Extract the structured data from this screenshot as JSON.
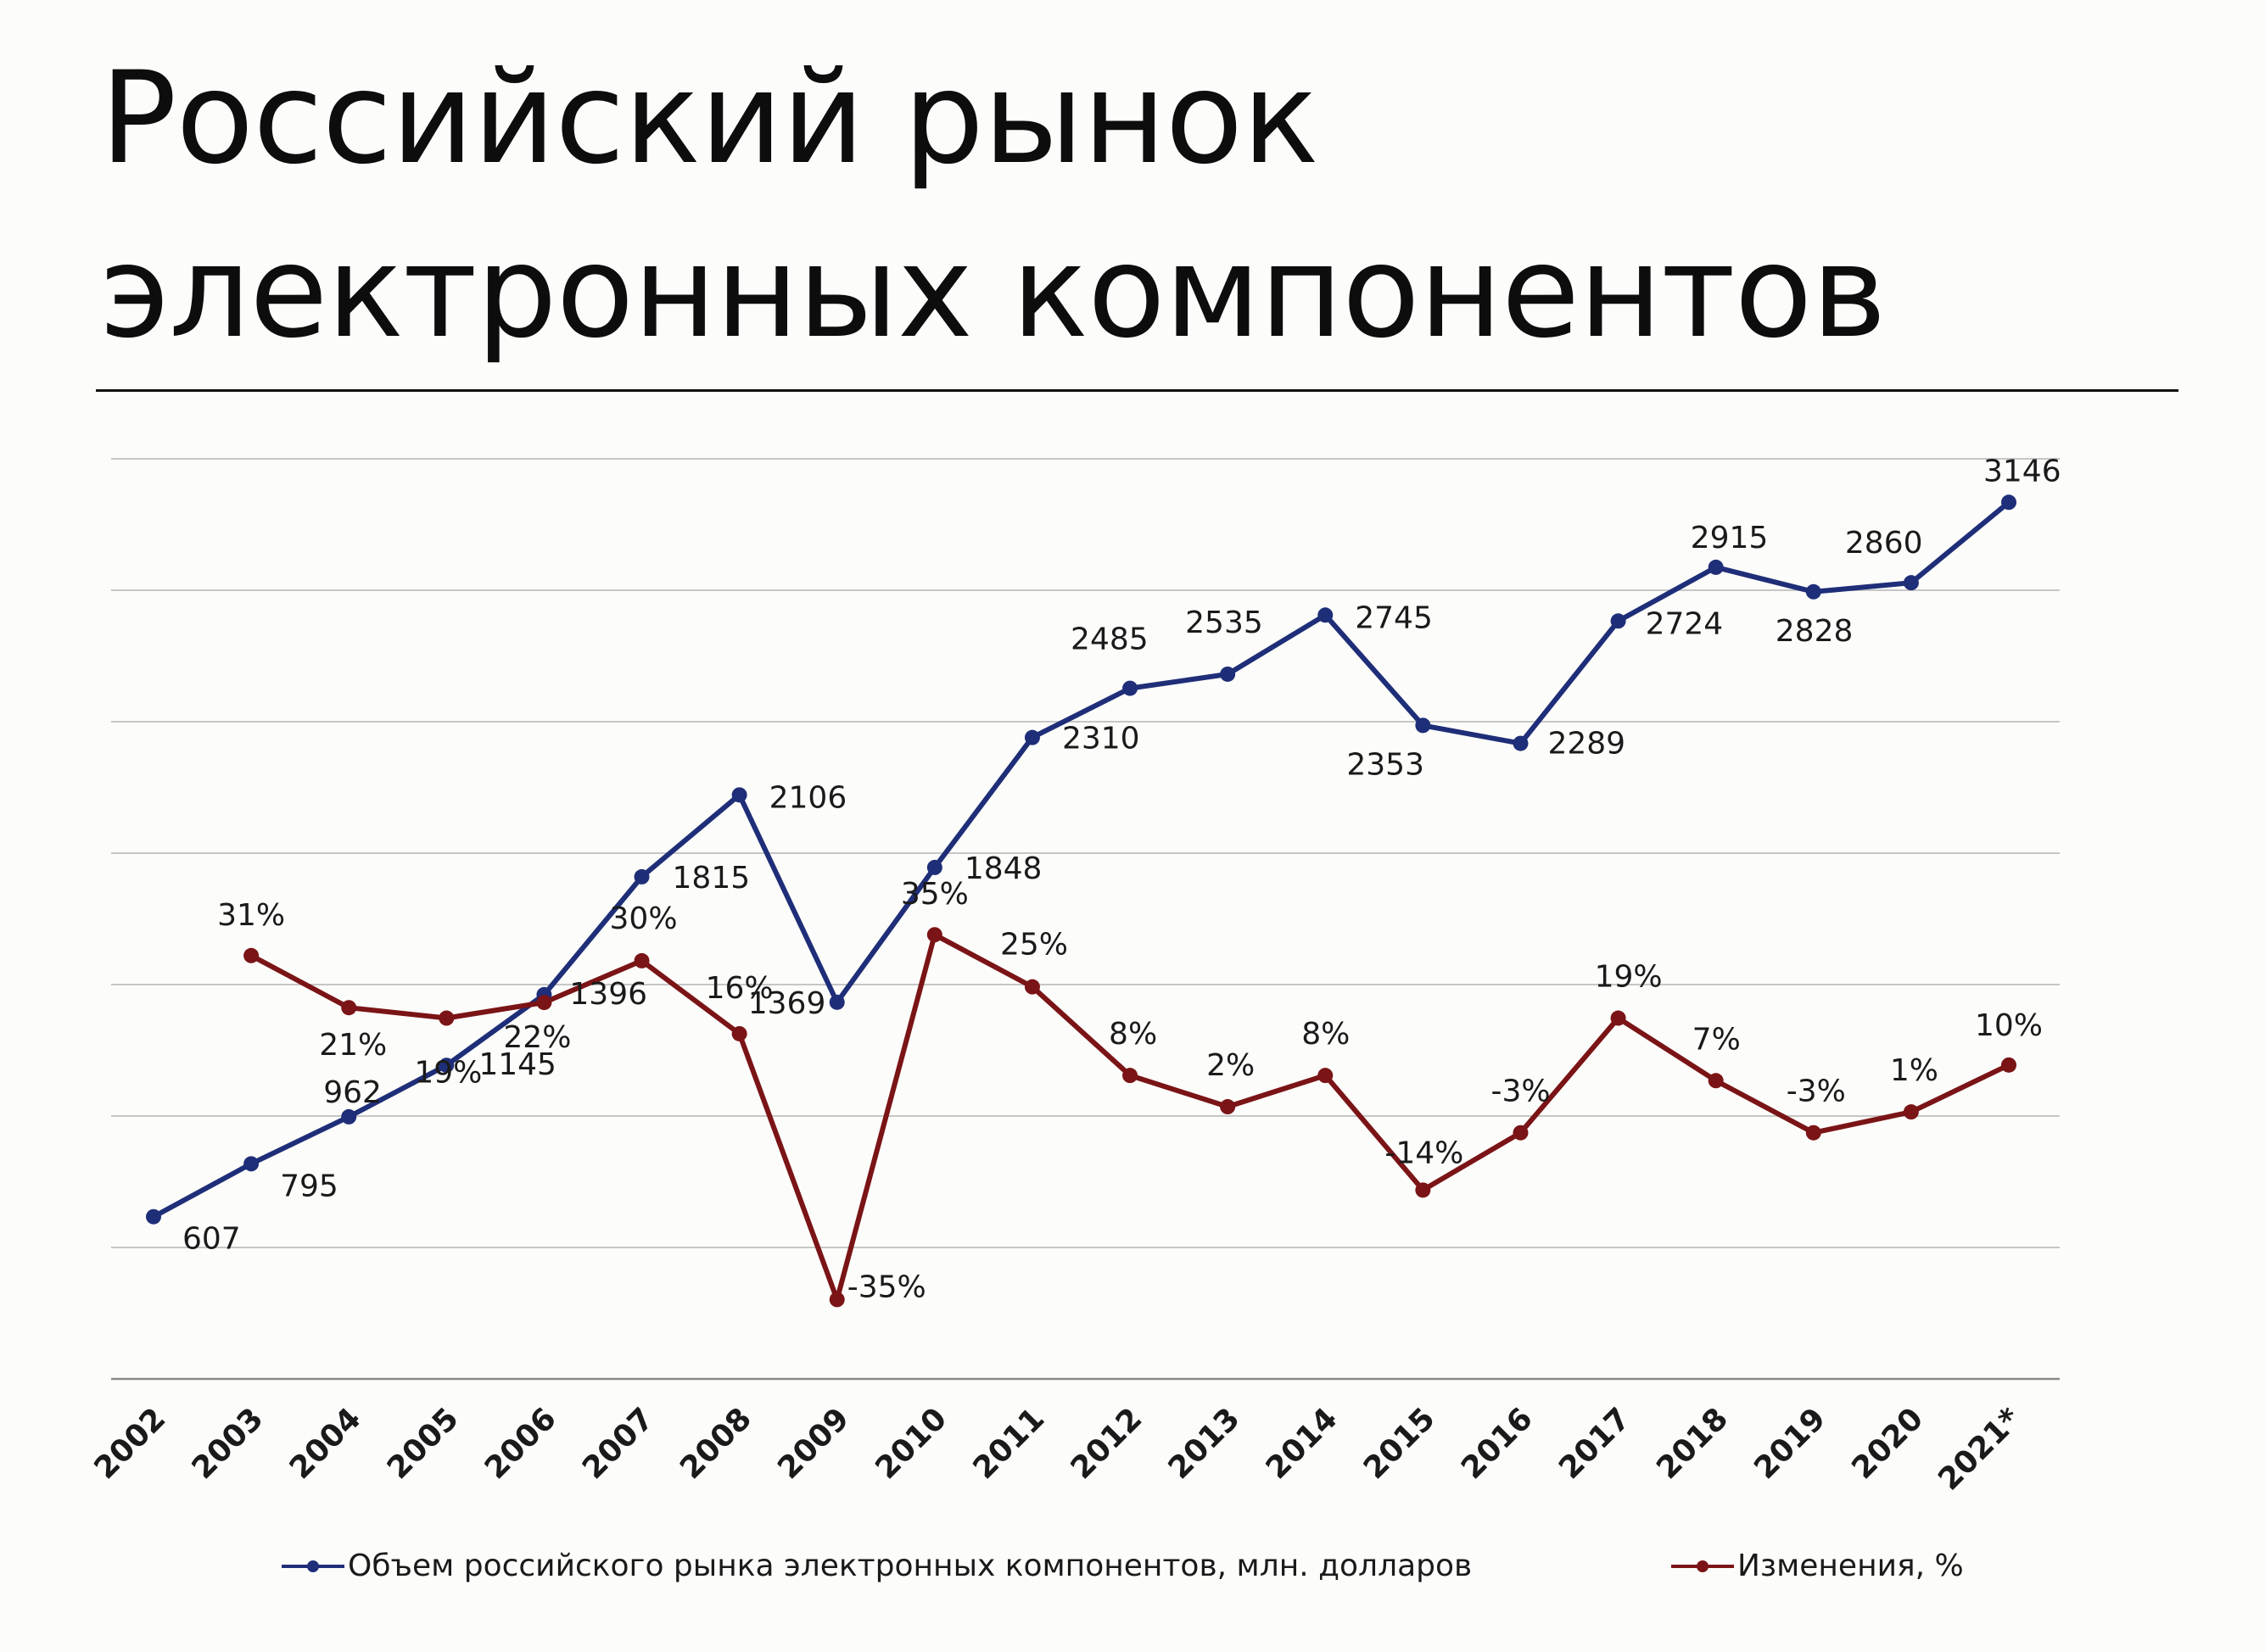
{
  "title_line1": "Российский рынок",
  "title_line2": "электронных компонентов",
  "chart_data": {
    "type": "line",
    "categories": [
      "2002",
      "2003",
      "2004",
      "2005",
      "2006",
      "2007",
      "2008",
      "2009",
      "2010",
      "2011",
      "2012",
      "2013",
      "2014",
      "2015",
      "2016",
      "2017",
      "2018",
      "2019",
      "2020",
      "2021*"
    ],
    "series": [
      {
        "name": "Объем российского рынка электронных компонентов, млн. долларов",
        "color": "#1f2e78",
        "values": [
          607,
          795,
          962,
          1145,
          1396,
          1815,
          2106,
          1369,
          1848,
          2310,
          2485,
          2535,
          2745,
          2353,
          2289,
          2724,
          2915,
          2828,
          2860,
          3146
        ],
        "labels": [
          "607",
          "795",
          "962",
          "1145",
          "1396",
          "1815",
          "2106",
          "1369",
          "1848",
          "2310",
          "2485",
          "2535",
          "2745",
          "2353",
          "2289",
          "2724",
          "2915",
          "2828",
          "2860",
          "3146"
        ]
      },
      {
        "name": "Изменения, %",
        "color": "#7a1416",
        "values": [
          null,
          31,
          21,
          19,
          22,
          30,
          16,
          -35,
          35,
          25,
          8,
          2,
          8,
          -14,
          -3,
          19,
          7,
          -3,
          1,
          10
        ],
        "labels": [
          null,
          "31%",
          "21%",
          "19%",
          "22%",
          "30%",
          "16%",
          "-35%",
          "35%",
          "25%",
          "8%",
          "2%",
          "8%",
          "-14%",
          "-3%",
          "19%",
          "7%",
          "-3%",
          "1%",
          "10%"
        ]
      }
    ],
    "grid": true,
    "legend_position": "bottom"
  },
  "legend": {
    "item1": "Объем российского рынка электронных компонентов, млн. долларов",
    "item2": "Изменения, %"
  }
}
